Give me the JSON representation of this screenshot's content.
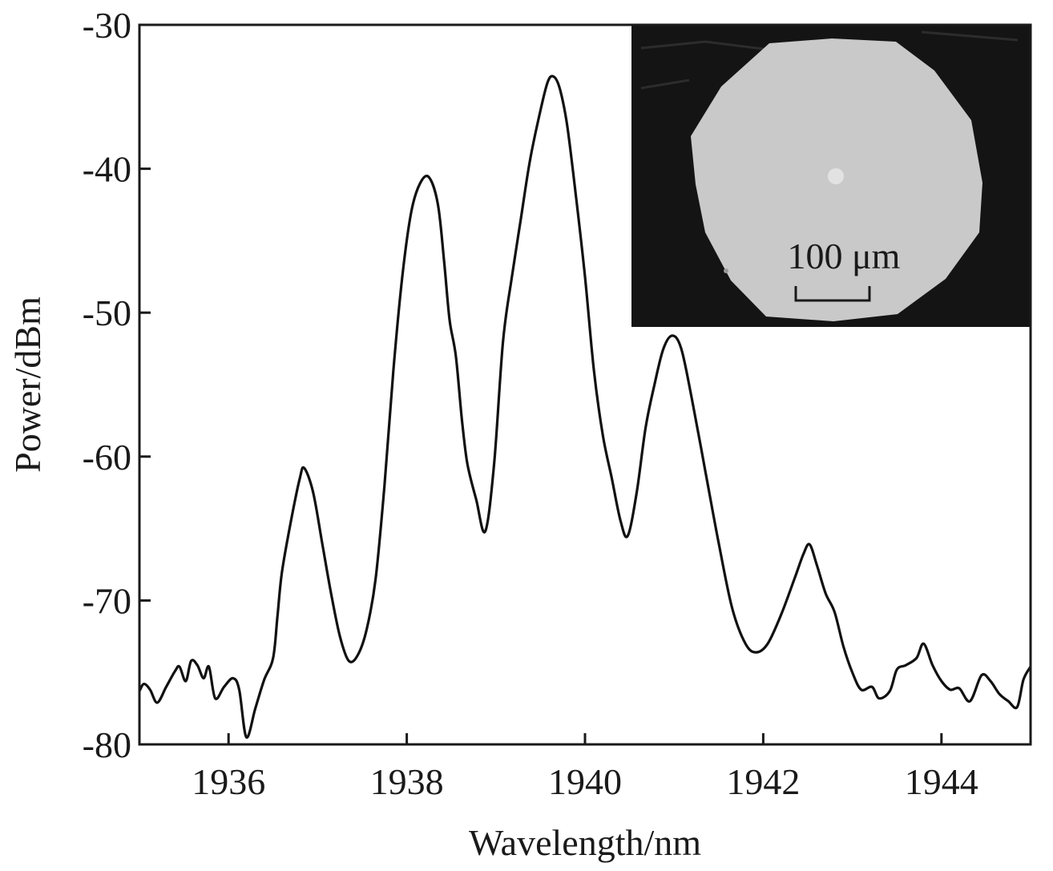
{
  "chart_data": {
    "type": "line",
    "xlabel": "Wavelength/nm",
    "ylabel": "Power/dBm",
    "xlim": [
      1935,
      1945
    ],
    "ylim": [
      -80,
      -30
    ],
    "xticks": [
      1936,
      1938,
      1940,
      1942,
      1944
    ],
    "yticks": [
      -30,
      -40,
      -50,
      -60,
      -70,
      -80
    ],
    "grid": false,
    "series": [
      {
        "color": "#111111",
        "points": [
          [
            1935.0,
            -76.3
          ],
          [
            1935.05,
            -75.8
          ],
          [
            1935.12,
            -76.2
          ],
          [
            1935.2,
            -77.1
          ],
          [
            1935.3,
            -76.0
          ],
          [
            1935.4,
            -74.9
          ],
          [
            1935.45,
            -74.6
          ],
          [
            1935.52,
            -75.6
          ],
          [
            1935.58,
            -74.2
          ],
          [
            1935.65,
            -74.5
          ],
          [
            1935.72,
            -75.4
          ],
          [
            1935.78,
            -74.6
          ],
          [
            1935.85,
            -76.8
          ],
          [
            1935.95,
            -76.0
          ],
          [
            1936.05,
            -75.4
          ],
          [
            1936.12,
            -76.2
          ],
          [
            1936.2,
            -79.5
          ],
          [
            1936.3,
            -77.5
          ],
          [
            1936.4,
            -75.5
          ],
          [
            1936.5,
            -74.0
          ],
          [
            1936.55,
            -71.0
          ],
          [
            1936.6,
            -68.0
          ],
          [
            1936.7,
            -64.5
          ],
          [
            1936.8,
            -61.5
          ],
          [
            1936.85,
            -60.8
          ],
          [
            1936.95,
            -62.5
          ],
          [
            1937.05,
            -66.0
          ],
          [
            1937.15,
            -69.5
          ],
          [
            1937.25,
            -72.5
          ],
          [
            1937.35,
            -74.2
          ],
          [
            1937.45,
            -73.8
          ],
          [
            1937.55,
            -72.0
          ],
          [
            1937.65,
            -68.5
          ],
          [
            1937.75,
            -62.0
          ],
          [
            1937.85,
            -54.0
          ],
          [
            1937.95,
            -47.5
          ],
          [
            1938.05,
            -43.0
          ],
          [
            1938.15,
            -41.0
          ],
          [
            1938.25,
            -40.6
          ],
          [
            1938.35,
            -42.5
          ],
          [
            1938.42,
            -46.5
          ],
          [
            1938.48,
            -50.5
          ],
          [
            1938.55,
            -53.0
          ],
          [
            1938.62,
            -57.5
          ],
          [
            1938.68,
            -60.5
          ],
          [
            1938.78,
            -63.0
          ],
          [
            1938.88,
            -65.2
          ],
          [
            1938.98,
            -60.5
          ],
          [
            1939.08,
            -52.0
          ],
          [
            1939.18,
            -47.5
          ],
          [
            1939.28,
            -43.5
          ],
          [
            1939.38,
            -39.5
          ],
          [
            1939.48,
            -36.5
          ],
          [
            1939.58,
            -34.0
          ],
          [
            1939.65,
            -33.6
          ],
          [
            1939.72,
            -34.5
          ],
          [
            1939.8,
            -37.0
          ],
          [
            1939.9,
            -42.0
          ],
          [
            1940.0,
            -47.5
          ],
          [
            1940.1,
            -54.0
          ],
          [
            1940.2,
            -58.5
          ],
          [
            1940.3,
            -61.5
          ],
          [
            1940.4,
            -64.5
          ],
          [
            1940.48,
            -65.5
          ],
          [
            1940.58,
            -62.5
          ],
          [
            1940.68,
            -58.0
          ],
          [
            1940.78,
            -55.0
          ],
          [
            1940.88,
            -52.5
          ],
          [
            1940.98,
            -51.6
          ],
          [
            1941.08,
            -52.5
          ],
          [
            1941.2,
            -56.0
          ],
          [
            1941.35,
            -61.0
          ],
          [
            1941.5,
            -66.0
          ],
          [
            1941.65,
            -70.5
          ],
          [
            1941.8,
            -73.0
          ],
          [
            1941.92,
            -73.6
          ],
          [
            1942.05,
            -73.0
          ],
          [
            1942.2,
            -71.0
          ],
          [
            1942.35,
            -68.5
          ],
          [
            1942.45,
            -66.8
          ],
          [
            1942.52,
            -66.1
          ],
          [
            1942.6,
            -67.5
          ],
          [
            1942.7,
            -69.5
          ],
          [
            1942.8,
            -70.8
          ],
          [
            1942.9,
            -73.2
          ],
          [
            1943.0,
            -75.0
          ],
          [
            1943.1,
            -76.2
          ],
          [
            1943.22,
            -76.0
          ],
          [
            1943.3,
            -76.8
          ],
          [
            1943.42,
            -76.3
          ],
          [
            1943.5,
            -74.8
          ],
          [
            1943.6,
            -74.5
          ],
          [
            1943.72,
            -74.0
          ],
          [
            1943.8,
            -73.0
          ],
          [
            1943.9,
            -74.5
          ],
          [
            1944.0,
            -75.6
          ],
          [
            1944.1,
            -76.2
          ],
          [
            1944.2,
            -76.1
          ],
          [
            1944.32,
            -77.0
          ],
          [
            1944.45,
            -75.2
          ],
          [
            1944.55,
            -75.6
          ],
          [
            1944.65,
            -76.5
          ],
          [
            1944.75,
            -77.0
          ],
          [
            1944.85,
            -77.4
          ],
          [
            1944.92,
            -75.5
          ],
          [
            1945.0,
            -74.6
          ]
        ]
      }
    ]
  },
  "inset": {
    "scale_label": "100 μm",
    "background_color": "#141414",
    "fiber_color": "#c9c9c9",
    "core_color": "#e0e0e0"
  }
}
